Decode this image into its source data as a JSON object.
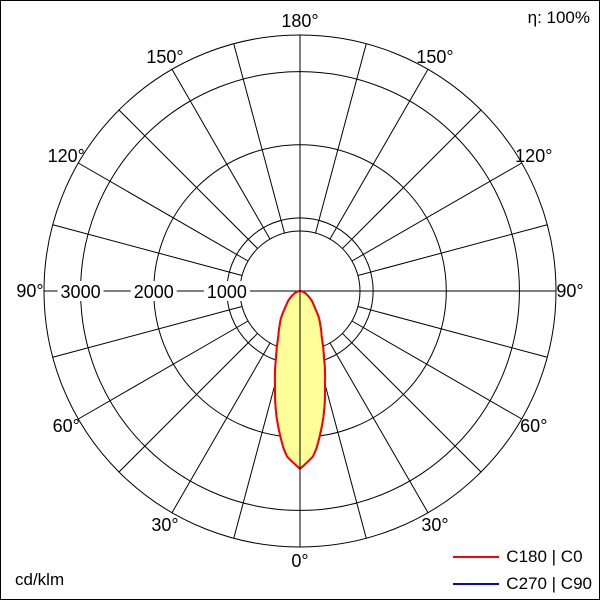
{
  "header": {
    "efficiency_label": "η: 100%"
  },
  "footer": {
    "unit_label": "cd/klm"
  },
  "legend": [
    {
      "label": "C180 | C0",
      "color": "#ff0000"
    },
    {
      "label": "C270 | C90",
      "color": "#0000ff"
    }
  ],
  "chart_data": {
    "type": "polar",
    "unit": "cd/klm",
    "efficiency": "η: 100%",
    "gamma_zero_direction": "down",
    "angle_labels": [
      "0°",
      "30°",
      "60°",
      "90°",
      "120°",
      "150°",
      "180°"
    ],
    "angle_label_step_deg": 30,
    "spoke_step_deg": 15,
    "radial_rings": [
      1000,
      2000,
      3000
    ],
    "radial_max": 3500,
    "grid_color": "#000000",
    "series": [
      {
        "key": "c180-c0",
        "name": "C180 | C0",
        "color": "#ff0000",
        "fill": "#ffff99",
        "symmetric": true,
        "gamma_deg": [
          0,
          5,
          10,
          15,
          20,
          25,
          30,
          35,
          40,
          45,
          50,
          55,
          60,
          65,
          70,
          75,
          80,
          85,
          90
        ],
        "values_cd_per_klm": [
          2430,
          2250,
          1800,
          1320,
          950,
          700,
          560,
          450,
          330,
          260,
          210,
          160,
          120,
          90,
          60,
          40,
          20,
          10,
          0
        ]
      },
      {
        "key": "c270-c90",
        "name": "C270 | C90",
        "color": "#0000ff",
        "fill": "#ffff99",
        "symmetric": true,
        "gamma_deg": [
          0,
          5,
          10,
          15,
          20,
          25,
          30,
          35,
          40,
          45,
          50,
          55,
          60,
          65,
          70,
          75,
          80,
          85,
          90
        ],
        "values_cd_per_klm": [
          2430,
          2250,
          1800,
          1320,
          950,
          700,
          560,
          450,
          330,
          260,
          210,
          160,
          120,
          90,
          60,
          40,
          20,
          10,
          0
        ]
      }
    ]
  }
}
